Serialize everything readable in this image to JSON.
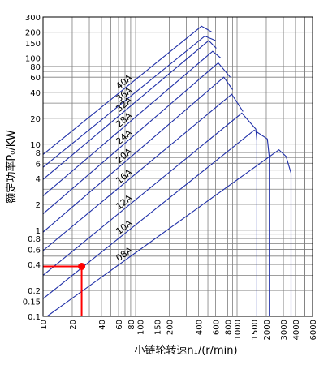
{
  "chart_data": {
    "type": "line",
    "title": "",
    "xlabel": "小链轮转速n₁/(r/min)",
    "ylabel": "额定功率P₀/KW",
    "x_scale": "log",
    "y_scale": "log",
    "xlim": [
      10,
      6000
    ],
    "ylim": [
      0.1,
      300
    ],
    "x_ticks": [
      10,
      20,
      40,
      60,
      80,
      100,
      150,
      200,
      400,
      600,
      800,
      1000,
      1500,
      2000,
      3000,
      4000,
      6000
    ],
    "y_ticks": [
      0.1,
      0.15,
      0.2,
      0.4,
      0.6,
      0.8,
      1,
      2,
      4,
      6,
      8,
      10,
      20,
      40,
      60,
      80,
      100,
      150,
      200,
      300
    ],
    "grid": true,
    "colors": {
      "series": "#1f2fa8",
      "highlight": "#ff0000",
      "grid": "#7f7f7f",
      "axis": "#000000"
    },
    "series": [
      {
        "name": "08A",
        "points": [
          [
            11,
            0.1
          ],
          [
            2700,
            8.6
          ],
          [
            3200,
            7.2
          ],
          [
            3600,
            4.6
          ],
          [
            3600,
            0.1
          ]
        ]
      },
      {
        "name": "10A",
        "points": [
          [
            10,
            0.16
          ],
          [
            1500,
            14.5
          ],
          [
            2050,
            11.5
          ],
          [
            2150,
            7.0
          ],
          [
            2150,
            0.1
          ]
        ]
      },
      {
        "name": "12A",
        "points": [
          [
            10,
            0.3
          ],
          [
            1120,
            23
          ],
          [
            1560,
            15
          ],
          [
            1600,
            11.0
          ],
          [
            1600,
            0.1
          ]
        ]
      },
      {
        "name": "16A",
        "points": [
          [
            10,
            0.58
          ],
          [
            880,
            38
          ],
          [
            1150,
            24
          ]
        ]
      },
      {
        "name": "20A",
        "points": [
          [
            10,
            0.95
          ],
          [
            730,
            60
          ],
          [
            900,
            43
          ]
        ]
      },
      {
        "name": "24A",
        "points": [
          [
            10,
            1.55
          ],
          [
            640,
            88
          ],
          [
            850,
            60
          ]
        ]
      },
      {
        "name": "28A",
        "points": [
          [
            10,
            2.5
          ],
          [
            560,
            120
          ],
          [
            680,
            100
          ]
        ]
      },
      {
        "name": "32A",
        "points": [
          [
            10,
            3.9
          ],
          [
            510,
            160
          ],
          [
            610,
            130
          ]
        ]
      },
      {
        "name": "36A",
        "points": [
          [
            10,
            5.4
          ],
          [
            465,
            180
          ],
          [
            600,
            160
          ]
        ]
      },
      {
        "name": "40A",
        "points": [
          [
            10,
            7.6
          ],
          [
            430,
            235
          ],
          [
            555,
            200
          ]
        ]
      }
    ],
    "marked_point": {
      "x": 25,
      "y": 0.38
    }
  }
}
